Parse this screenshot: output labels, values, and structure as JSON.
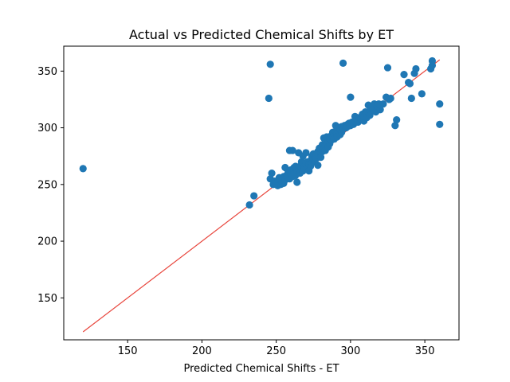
{
  "chart_data": {
    "type": "scatter",
    "title": "Actual vs Predicted Chemical Shifts by ET",
    "xlabel": "Predicted Chemical Shifts - ET",
    "ylabel": "",
    "xlim": [
      107,
      373
    ],
    "ylim": [
      113,
      372
    ],
    "xticks": [
      150,
      200,
      250,
      300,
      350
    ],
    "yticks": [
      150,
      200,
      250,
      300,
      350
    ],
    "grid": false,
    "colors": {
      "points": "#1f77b4",
      "reference_line": "#e8453c"
    },
    "reference_line": {
      "from": [
        120,
        120
      ],
      "to": [
        360,
        360
      ]
    },
    "points": [
      [
        120,
        264
      ],
      [
        232,
        232
      ],
      [
        235,
        240
      ],
      [
        245,
        326
      ],
      [
        246,
        356
      ],
      [
        246,
        255
      ],
      [
        247,
        260
      ],
      [
        248,
        250
      ],
      [
        249,
        253
      ],
      [
        250,
        251
      ],
      [
        251,
        249
      ],
      [
        252,
        256
      ],
      [
        253,
        250
      ],
      [
        253,
        254
      ],
      [
        254,
        252
      ],
      [
        255,
        251
      ],
      [
        255,
        257
      ],
      [
        256,
        265
      ],
      [
        256,
        254
      ],
      [
        257,
        258
      ],
      [
        258,
        256
      ],
      [
        258,
        261
      ],
      [
        259,
        280
      ],
      [
        259,
        255
      ],
      [
        260,
        259
      ],
      [
        260,
        263
      ],
      [
        261,
        280
      ],
      [
        261,
        257
      ],
      [
        262,
        262
      ],
      [
        262,
        265
      ],
      [
        263,
        258
      ],
      [
        263,
        266
      ],
      [
        264,
        252
      ],
      [
        264,
        262
      ],
      [
        265,
        278
      ],
      [
        265,
        264
      ],
      [
        266,
        260
      ],
      [
        266,
        266
      ],
      [
        267,
        265
      ],
      [
        267,
        270
      ],
      [
        268,
        262
      ],
      [
        268,
        275
      ],
      [
        269,
        266
      ],
      [
        269,
        264
      ],
      [
        270,
        268
      ],
      [
        270,
        278
      ],
      [
        271,
        264
      ],
      [
        271,
        270
      ],
      [
        272,
        262
      ],
      [
        272,
        268
      ],
      [
        273,
        271
      ],
      [
        273,
        266
      ],
      [
        274,
        275
      ],
      [
        274,
        269
      ],
      [
        275,
        272
      ],
      [
        275,
        277
      ],
      [
        276,
        274
      ],
      [
        276,
        270
      ],
      [
        277,
        276
      ],
      [
        277,
        273
      ],
      [
        278,
        267
      ],
      [
        278,
        279
      ],
      [
        279,
        275
      ],
      [
        279,
        282
      ],
      [
        280,
        278
      ],
      [
        280,
        274
      ],
      [
        281,
        285
      ],
      [
        281,
        279
      ],
      [
        282,
        291
      ],
      [
        282,
        282
      ],
      [
        283,
        284
      ],
      [
        283,
        280
      ],
      [
        284,
        287
      ],
      [
        284,
        292
      ],
      [
        285,
        288
      ],
      [
        285,
        283
      ],
      [
        286,
        290
      ],
      [
        286,
        286
      ],
      [
        287,
        293
      ],
      [
        287,
        289
      ],
      [
        288,
        291
      ],
      [
        288,
        296
      ],
      [
        289,
        294
      ],
      [
        289,
        290
      ],
      [
        290,
        302
      ],
      [
        290,
        297
      ],
      [
        291,
        295
      ],
      [
        291,
        292
      ],
      [
        292,
        297
      ],
      [
        292,
        300
      ],
      [
        293,
        298
      ],
      [
        293,
        294
      ],
      [
        294,
        301
      ],
      [
        294,
        296
      ],
      [
        295,
        357
      ],
      [
        295,
        299
      ],
      [
        296,
        302
      ],
      [
        297,
        300
      ],
      [
        298,
        303
      ],
      [
        298,
        301
      ],
      [
        299,
        304
      ],
      [
        300,
        327
      ],
      [
        300,
        302
      ],
      [
        301,
        305
      ],
      [
        302,
        303
      ],
      [
        303,
        310
      ],
      [
        303,
        306
      ],
      [
        304,
        307
      ],
      [
        305,
        305
      ],
      [
        306,
        309
      ],
      [
        307,
        308
      ],
      [
        308,
        312
      ],
      [
        309,
        306
      ],
      [
        309,
        310
      ],
      [
        310,
        314
      ],
      [
        311,
        313
      ],
      [
        311,
        309
      ],
      [
        312,
        320
      ],
      [
        313,
        315
      ],
      [
        313,
        311
      ],
      [
        314,
        318
      ],
      [
        315,
        316
      ],
      [
        316,
        321
      ],
      [
        317,
        314
      ],
      [
        318,
        319
      ],
      [
        319,
        321
      ],
      [
        320,
        316
      ],
      [
        320,
        320
      ],
      [
        322,
        321
      ],
      [
        324,
        327
      ],
      [
        325,
        353
      ],
      [
        326,
        325
      ],
      [
        327,
        326
      ],
      [
        330,
        302
      ],
      [
        331,
        307
      ],
      [
        336,
        347
      ],
      [
        339,
        340
      ],
      [
        340,
        339
      ],
      [
        341,
        326
      ],
      [
        343,
        348
      ],
      [
        344,
        352
      ],
      [
        348,
        330
      ],
      [
        354,
        352
      ],
      [
        355,
        359
      ],
      [
        355,
        355
      ],
      [
        360,
        321
      ],
      [
        360,
        303
      ]
    ]
  }
}
